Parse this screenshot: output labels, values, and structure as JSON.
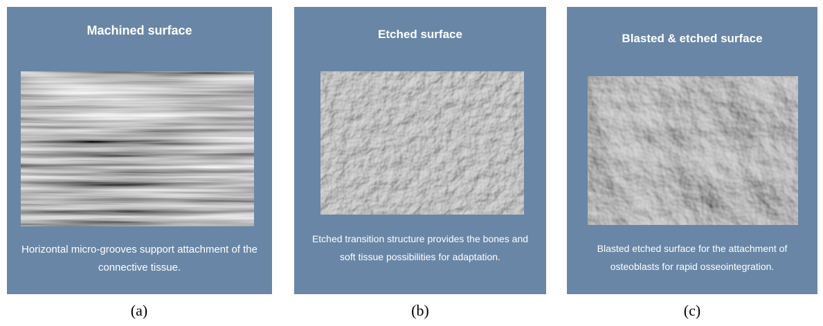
{
  "panels": [
    {
      "title": "Machined surface",
      "description": "Horizontal micro-grooves support attachment of the connective tissue.",
      "label": "(a)"
    },
    {
      "title": "Etched surface",
      "description": "Etched transition structure provides the bones and soft tissue possibilities for adaptation.",
      "label": "(b)"
    },
    {
      "title": "Blasted & etched surface",
      "description": "Blasted etched surface for the attachment of osteoblasts for rapid osseointegration.",
      "label": "(c)"
    }
  ]
}
